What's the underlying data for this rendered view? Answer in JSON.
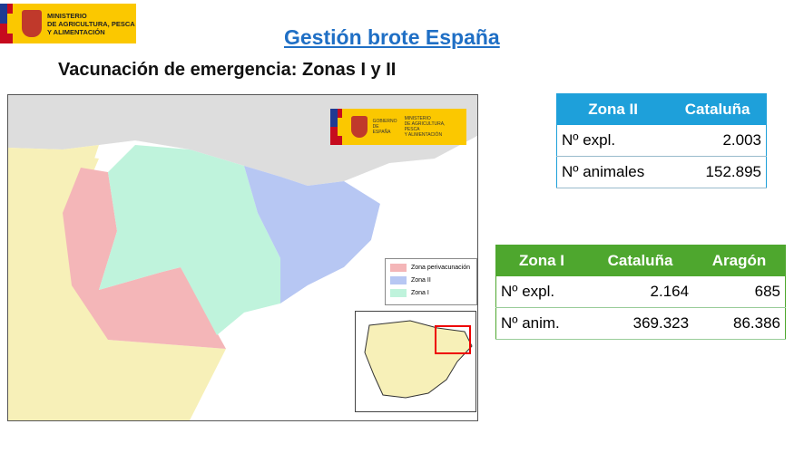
{
  "header": {
    "logo_text": [
      "MINISTERIO",
      "DE AGRICULTURA, PESCA",
      "Y ALIMENTACIÓN"
    ],
    "title": "Gestión brote España",
    "subtitle": "Vacunación de emergencia: Zonas I y II"
  },
  "map": {
    "logo_left": [
      "GOBIERNO",
      "DE ESPAÑA"
    ],
    "logo_right": [
      "MINISTERIO",
      "DE AGRICULTURA, PESCA",
      "Y ALIMENTACIÓN"
    ],
    "legend": [
      {
        "label": "Zona perivacunación",
        "color": "#f4b6b8"
      },
      {
        "label": "Zona II",
        "color": "#b7c7f3"
      },
      {
        "label": "Zona I",
        "color": "#bff3dc"
      }
    ]
  },
  "table_zona2": {
    "headers": [
      "Zona II",
      "Cataluña"
    ],
    "rows": [
      [
        "Nº expl.",
        "2.003"
      ],
      [
        "Nº animales",
        "152.895"
      ]
    ],
    "color": "#1ea0da"
  },
  "table_zona1": {
    "headers": [
      "Zona I",
      "Cataluña",
      "Aragón"
    ],
    "rows": [
      [
        "Nº expl.",
        "2.164",
        "685"
      ],
      [
        "Nº anim.",
        "369.323",
        "86.386"
      ]
    ],
    "color": "#4ea72e"
  }
}
